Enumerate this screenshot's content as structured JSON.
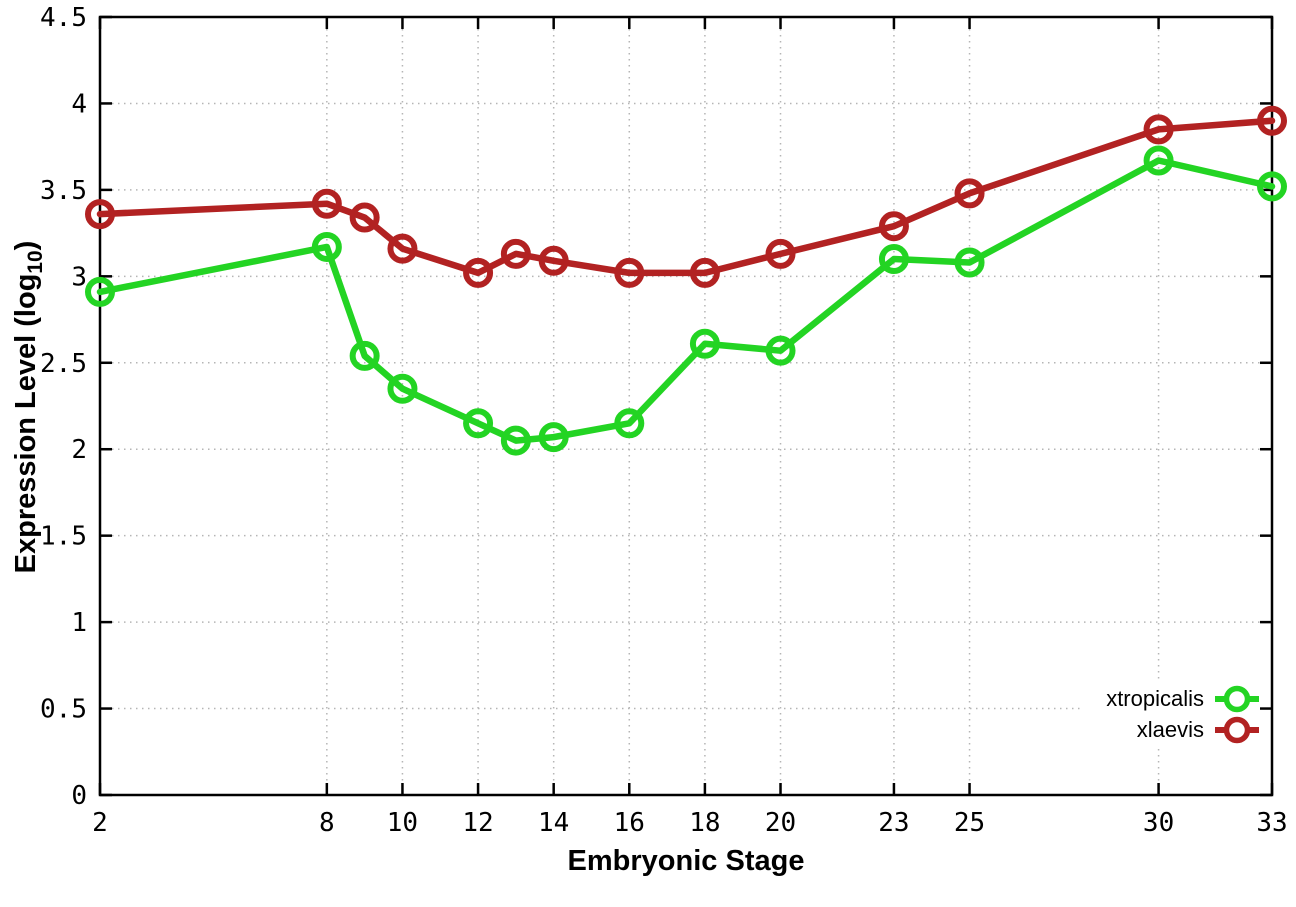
{
  "chart_data": {
    "type": "line",
    "title": "",
    "xlabel": "Embryonic Stage",
    "ylabel": "Expression Level (log10)",
    "ylabel_parts": {
      "before": "Expression Level (log",
      "sub": "10",
      "after": ")"
    },
    "x": [
      2,
      8,
      9,
      10,
      12,
      13,
      14,
      16,
      18,
      20,
      23,
      25,
      30,
      33
    ],
    "series": [
      {
        "name": "xtropicalis",
        "color": "#23d423",
        "values": [
          2.91,
          3.17,
          2.54,
          2.35,
          2.15,
          2.05,
          2.07,
          2.15,
          2.61,
          2.57,
          3.1,
          3.08,
          3.67,
          3.52
        ]
      },
      {
        "name": "xlaevis",
        "color": "#b22222",
        "values": [
          3.36,
          3.42,
          3.34,
          3.16,
          3.02,
          3.13,
          3.09,
          3.02,
          3.02,
          3.13,
          3.29,
          3.48,
          3.85,
          3.9
        ]
      }
    ],
    "xlim": [
      2,
      33
    ],
    "ylim": [
      0,
      4.5
    ],
    "x_ticks": [
      2,
      8,
      10,
      12,
      14,
      16,
      18,
      20,
      23,
      25,
      30,
      33
    ],
    "y_ticks": [
      0,
      0.5,
      1,
      1.5,
      2,
      2.5,
      3,
      3.5,
      4,
      4.5
    ],
    "y_tick_labels": [
      "0",
      "0.5",
      "1",
      "1.5",
      "2",
      "2.5",
      "3",
      "3.5",
      "4",
      "4.5"
    ],
    "grid": true,
    "legend_position": "inside-bottom-right",
    "marker": "open-circle",
    "axis_color": "#000000",
    "grid_color": "#b5b5b5",
    "background_color": "#ffffff"
  }
}
